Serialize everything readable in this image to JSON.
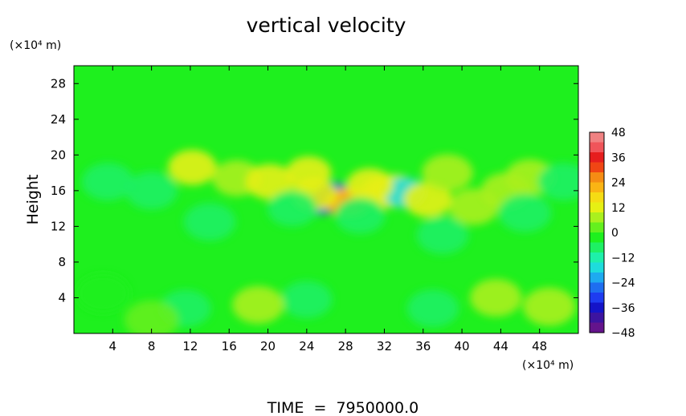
{
  "chart_data": {
    "type": "heatmap",
    "title": "vertical velocity",
    "ylabel": "Height",
    "y_unit": "(×10⁴ m)",
    "x_unit": "(×10⁴ m)",
    "footer": "TIME  =  7950000.0",
    "xlim": [
      0,
      52
    ],
    "ylim": [
      0,
      30
    ],
    "x_ticks": [
      4,
      8,
      12,
      16,
      20,
      24,
      28,
      32,
      36,
      40,
      44,
      48
    ],
    "x_tick_labels": [
      "4",
      "8",
      "12",
      "16",
      "20",
      "24",
      "28",
      "32",
      "36",
      "40",
      "44",
      "48"
    ],
    "y_ticks": [
      4,
      8,
      12,
      16,
      20,
      24,
      28
    ],
    "y_tick_labels": [
      "4",
      "8",
      "12",
      "16",
      "20",
      "24",
      "28"
    ],
    "colorbar": {
      "range": [
        -48,
        48
      ],
      "tick_values": [
        48,
        36,
        24,
        12,
        0,
        -12,
        -24,
        -36,
        -48
      ],
      "tick_labels": [
        "48",
        "36",
        "24",
        "12",
        "0",
        "−12",
        "−24",
        "−36",
        "−48"
      ],
      "bands": [
        "#f08282",
        "#f0555a",
        "#e61e1e",
        "#f04614",
        "#f58c14",
        "#fab414",
        "#f5dc14",
        "#e6f014",
        "#aaf01e",
        "#64f01e",
        "#1ef01e",
        "#1ef064",
        "#1ef0aa",
        "#1edcdc",
        "#1eaaf0",
        "#1e6ef0",
        "#1e3cf0",
        "#1414c8",
        "#3c14a0",
        "#64148c"
      ]
    },
    "field": {
      "background_color": "#1ef01e",
      "features": [
        {
          "x": 26.2,
          "y": 14.6,
          "value": -44
        },
        {
          "x": 25.5,
          "y": 14.6,
          "value": -32
        },
        {
          "x": 26.8,
          "y": 15.6,
          "value": -30
        },
        {
          "x": 27.6,
          "y": 14.6,
          "value": 28
        },
        {
          "x": 28.4,
          "y": 14.8,
          "value": 20
        },
        {
          "x": 24.8,
          "y": 15.6,
          "value": 14
        },
        {
          "x": 24.2,
          "y": 18.0,
          "value": 14
        },
        {
          "x": 31.8,
          "y": 15.8,
          "value": 16
        },
        {
          "x": 33.0,
          "y": 16.0,
          "value": 14
        },
        {
          "x": 34.0,
          "y": 15.8,
          "value": -18
        },
        {
          "x": 30.5,
          "y": 16.6,
          "value": 12
        },
        {
          "x": 12.2,
          "y": 18.6,
          "value": 10
        },
        {
          "x": 16.8,
          "y": 17.4,
          "value": 9
        },
        {
          "x": 20.2,
          "y": 17.0,
          "value": 10
        },
        {
          "x": 36.5,
          "y": 15.0,
          "value": 10
        },
        {
          "x": 44.5,
          "y": 16.0,
          "value": 9
        },
        {
          "x": 47.0,
          "y": 17.5,
          "value": 9
        },
        {
          "x": 41.2,
          "y": 14.2,
          "value": 8
        },
        {
          "x": 38.5,
          "y": 18.0,
          "value": 7
        },
        {
          "x": 22.5,
          "y": 14.0,
          "value": -9
        },
        {
          "x": 29.5,
          "y": 13.2,
          "value": -8
        },
        {
          "x": 3.5,
          "y": 17.0,
          "value": -6
        },
        {
          "x": 8.0,
          "y": 16.0,
          "value": -6
        },
        {
          "x": 14.0,
          "y": 12.5,
          "value": -6
        },
        {
          "x": 38.0,
          "y": 11.0,
          "value": -6
        },
        {
          "x": 46.5,
          "y": 13.5,
          "value": -5
        },
        {
          "x": 50.5,
          "y": 17.0,
          "value": -6
        },
        {
          "x": 11.5,
          "y": 2.8,
          "value": -7
        },
        {
          "x": 24.0,
          "y": 3.8,
          "value": -7
        },
        {
          "x": 37.0,
          "y": 2.8,
          "value": -6
        },
        {
          "x": 3.0,
          "y": 4.5,
          "value": -4
        },
        {
          "x": 19.0,
          "y": 3.2,
          "value": 6
        },
        {
          "x": 43.5,
          "y": 4.0,
          "value": 6
        },
        {
          "x": 49.0,
          "y": 3.0,
          "value": 5
        },
        {
          "x": 8.0,
          "y": 1.5,
          "value": 3
        }
      ]
    }
  }
}
